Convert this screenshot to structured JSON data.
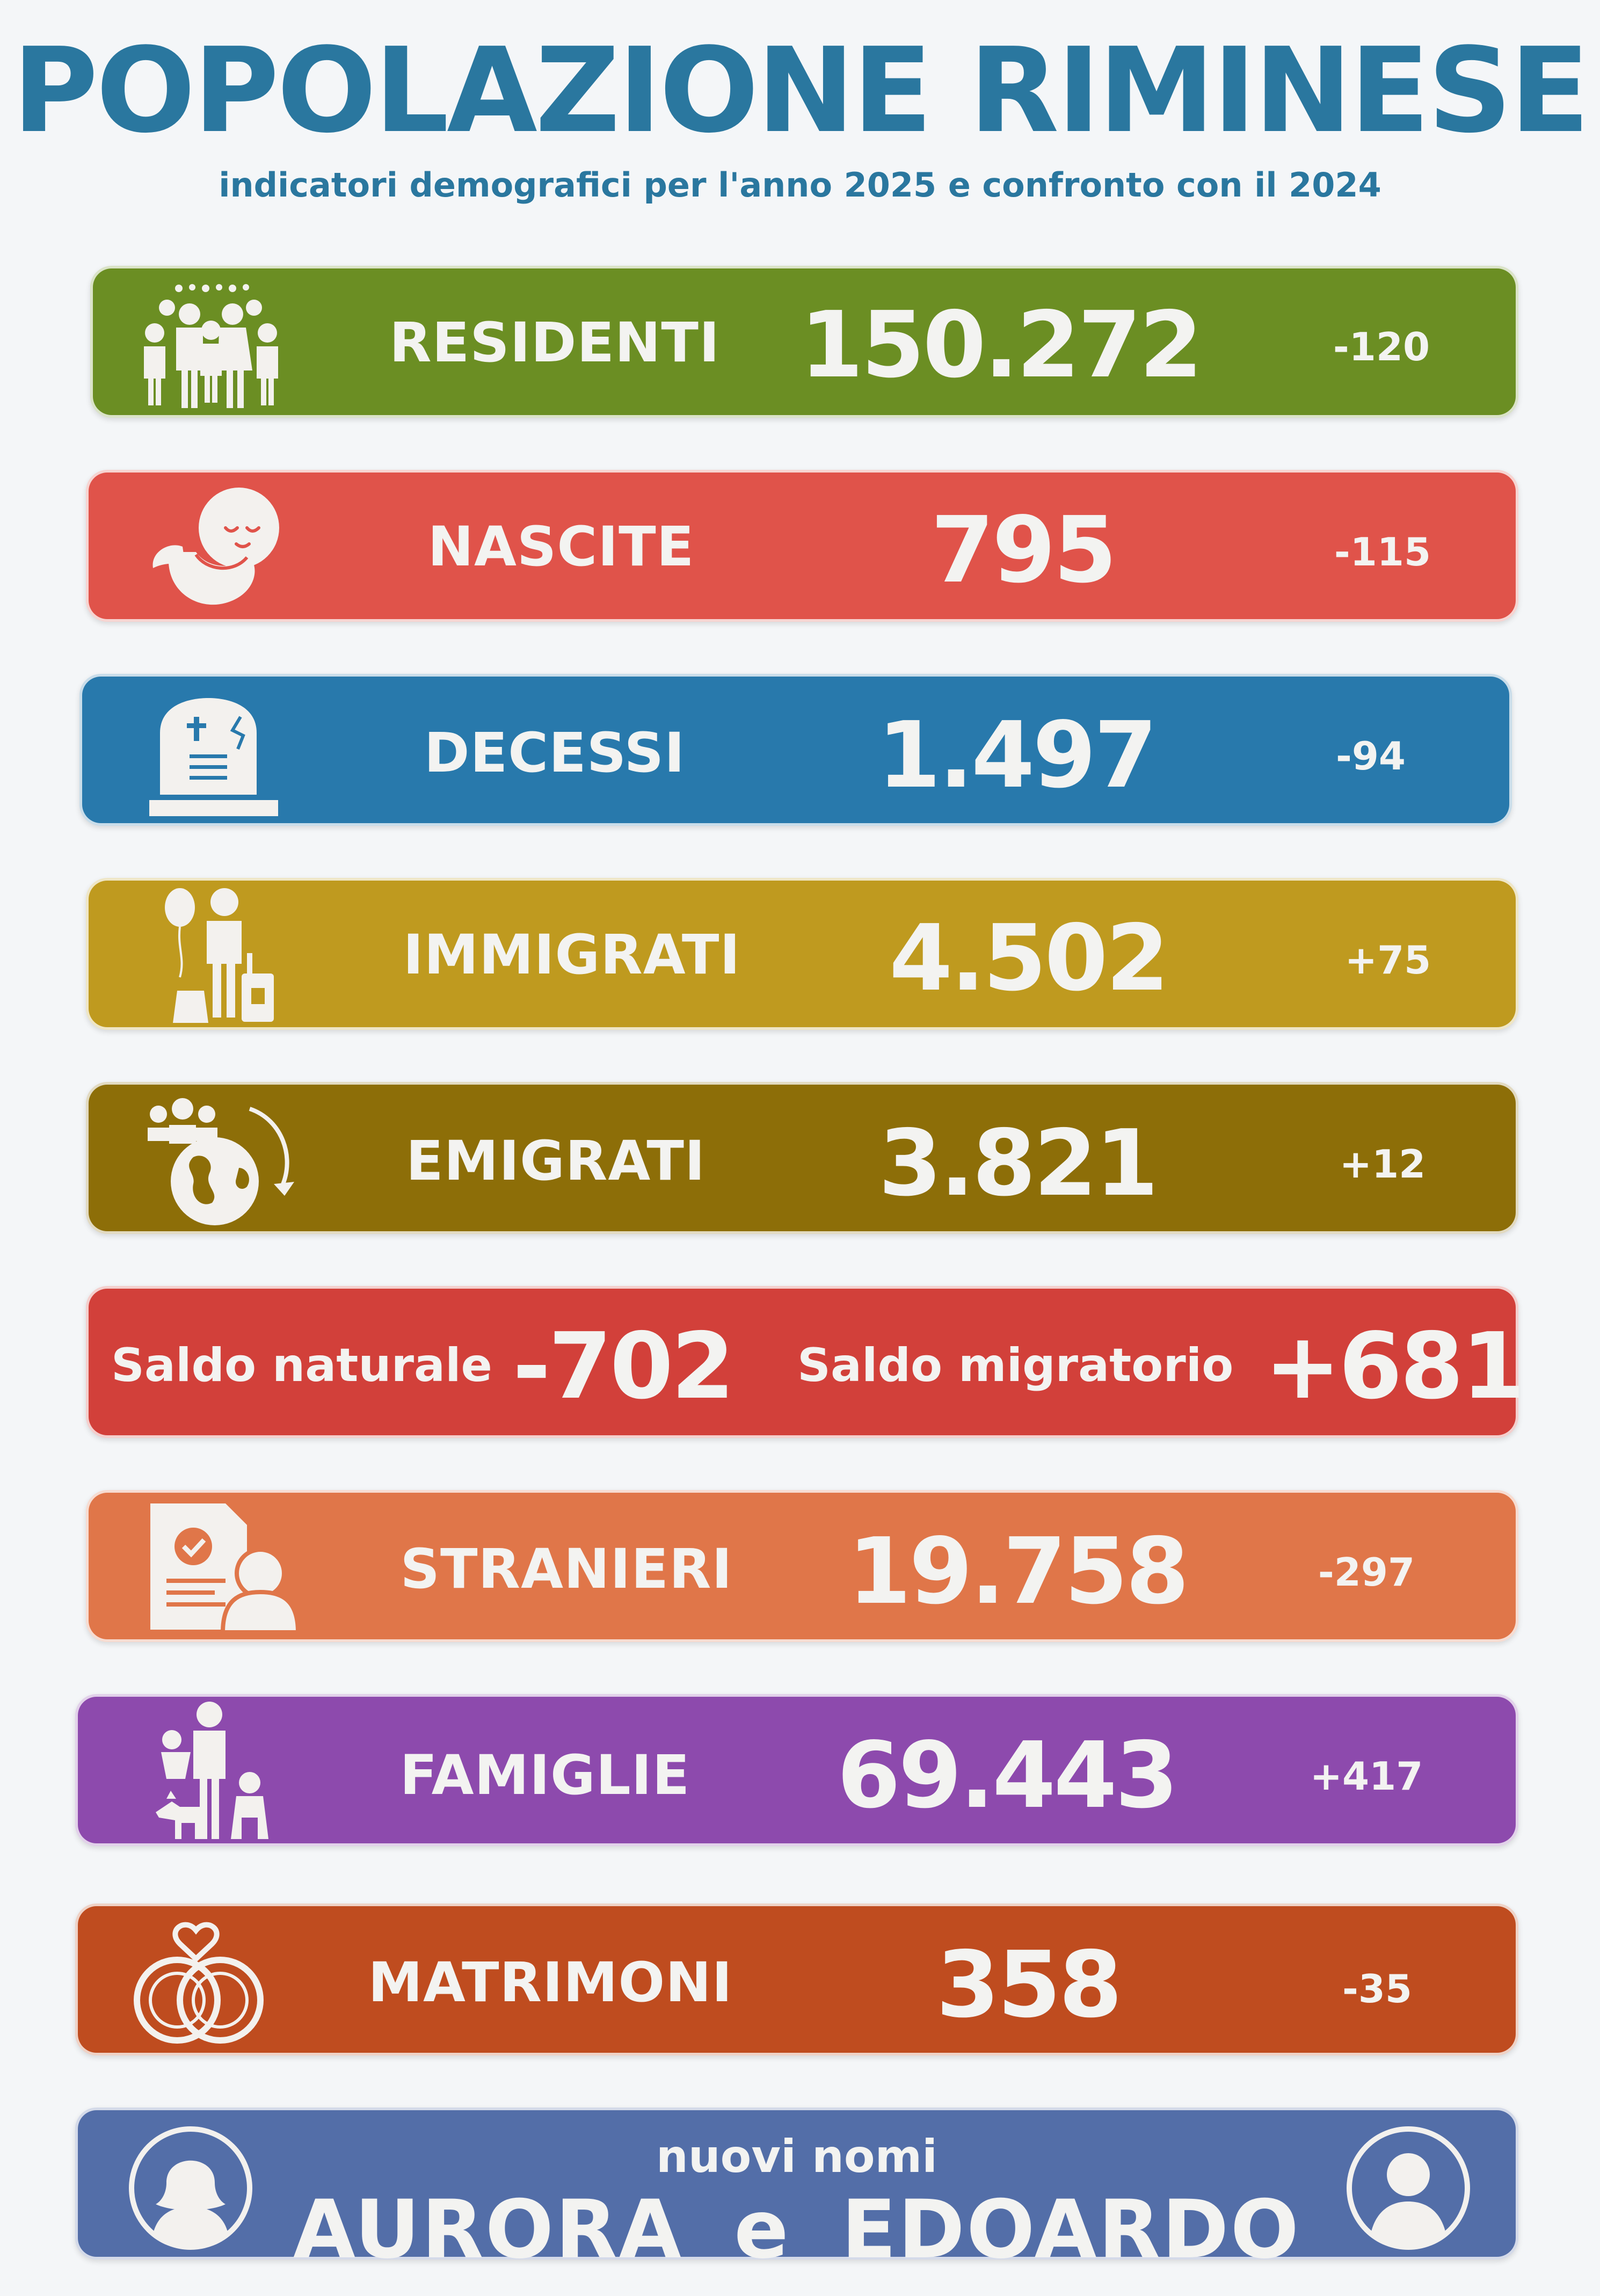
{
  "header": {
    "title": "POPOLAZIONE RIMINESE",
    "subtitle": "indicatori demografici per l'anno 2025 e confronto con il 2024"
  },
  "indicators": [
    {
      "label": "RESIDENTI",
      "value": "150.272",
      "delta": "-120",
      "color": "#6b8e23",
      "icon": "people-crowd-icon"
    },
    {
      "label": "NASCITE",
      "value": "795",
      "delta": "-115",
      "color": "#e0534a",
      "icon": "baby-fetus-icon"
    },
    {
      "label": "DECESSI",
      "value": "1.497",
      "delta": "-94",
      "color": "#2879ac",
      "icon": "tombstone-icon"
    },
    {
      "label": "IMMIGRATI",
      "value": "4.502",
      "delta": "+75",
      "color": "#bf9a1f",
      "icon": "traveler-luggage-icon"
    },
    {
      "label": "EMIGRATI",
      "value": "3.821",
      "delta": "+12",
      "color": "#8d6e08",
      "icon": "globe-people-icon"
    },
    {
      "label": "STRANIERI",
      "value": "19.758",
      "delta": "-297",
      "color": "#e07649",
      "icon": "document-person-icon"
    },
    {
      "label": "FAMIGLIE",
      "value": "69.443",
      "delta": "+417",
      "color": "#8d4aad",
      "icon": "family-dog-icon"
    },
    {
      "label": "MATRIMONI",
      "value": "358",
      "delta": "-35",
      "color": "#bf4c1f",
      "icon": "wedding-rings-icon"
    }
  ],
  "saldo": {
    "color": "#d2403a",
    "natural_label": "Saldo naturale",
    "natural_value": "-702",
    "migratory_label": "Saldo migratorio",
    "migratory_value": "+681"
  },
  "names": {
    "color": "#536ea8",
    "intro": "nuovi nomi",
    "text": "AURORA e EDOARDO",
    "left_icon": "female-avatar-icon",
    "right_icon": "male-avatar-icon"
  }
}
